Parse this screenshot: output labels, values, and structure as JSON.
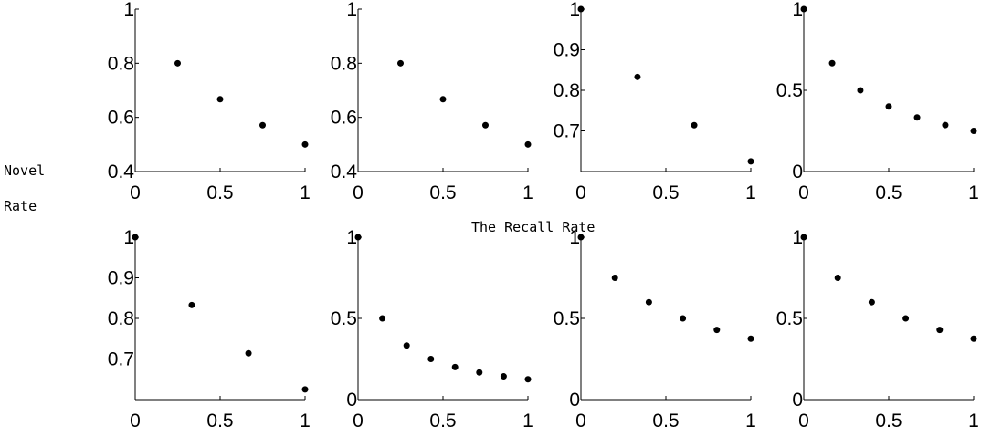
{
  "figure": {
    "ylabel_lines": [
      "Novel",
      "Rate"
    ],
    "xlabel": "The Recall Rate"
  },
  "chart_data": [
    {
      "type": "scatter",
      "x": [
        0.25,
        0.5,
        0.75,
        1.0
      ],
      "y": [
        0.8,
        0.667,
        0.571,
        0.5
      ],
      "xlim": [
        0,
        1
      ],
      "ylim": [
        0.4,
        1.0
      ],
      "xticks": [
        0,
        0.5,
        1
      ],
      "xtick_labels": [
        "0",
        "0.5",
        "1"
      ],
      "yticks": [
        0.4,
        0.6,
        0.8,
        1.0
      ],
      "ytick_labels": [
        "0.4",
        "0.6",
        "0.8",
        "1"
      ]
    },
    {
      "type": "scatter",
      "x": [
        0.25,
        0.5,
        0.75,
        1.0
      ],
      "y": [
        0.8,
        0.667,
        0.571,
        0.5
      ],
      "xlim": [
        0,
        1
      ],
      "ylim": [
        0.4,
        1.0
      ],
      "xticks": [
        0,
        0.5,
        1
      ],
      "xtick_labels": [
        "0",
        "0.5",
        "1"
      ],
      "yticks": [
        0.4,
        0.6,
        0.8,
        1.0
      ],
      "ytick_labels": [
        "0.4",
        "0.6",
        "0.8",
        "1"
      ]
    },
    {
      "type": "scatter",
      "x": [
        0,
        0.333,
        0.667,
        1.0
      ],
      "y": [
        1.0,
        0.833,
        0.714,
        0.625
      ],
      "xlim": [
        0,
        1
      ],
      "ylim": [
        0.6,
        1.0
      ],
      "xticks": [
        0,
        0.5,
        1
      ],
      "xtick_labels": [
        "0",
        "0.5",
        "1"
      ],
      "yticks": [
        0.7,
        0.8,
        0.9,
        1.0
      ],
      "ytick_labels": [
        "0.7",
        "0.8",
        "0.9",
        "1"
      ]
    },
    {
      "type": "scatter",
      "x": [
        0,
        0.167,
        0.333,
        0.5,
        0.667,
        0.833,
        1.0
      ],
      "y": [
        1.0,
        0.667,
        0.5,
        0.4,
        0.333,
        0.286,
        0.25
      ],
      "xlim": [
        0,
        1
      ],
      "ylim": [
        0,
        1.0
      ],
      "xticks": [
        0,
        0.5,
        1
      ],
      "xtick_labels": [
        "0",
        "0.5",
        "1"
      ],
      "yticks": [
        0,
        0.5,
        1.0
      ],
      "ytick_labels": [
        "0",
        "0.5",
        "1"
      ]
    },
    {
      "type": "scatter",
      "x": [
        0,
        0.333,
        0.667,
        1.0
      ],
      "y": [
        1.0,
        0.833,
        0.714,
        0.625
      ],
      "xlim": [
        0,
        1
      ],
      "ylim": [
        0.6,
        1.0
      ],
      "xticks": [
        0,
        0.5,
        1
      ],
      "xtick_labels": [
        "0",
        "0.5",
        "1"
      ],
      "yticks": [
        0.7,
        0.8,
        0.9,
        1.0
      ],
      "ytick_labels": [
        "0.7",
        "0.8",
        "0.9",
        "1"
      ]
    },
    {
      "type": "scatter",
      "x": [
        0,
        0.143,
        0.286,
        0.429,
        0.571,
        0.714,
        0.857,
        1.0
      ],
      "y": [
        1.0,
        0.5,
        0.333,
        0.25,
        0.2,
        0.167,
        0.143,
        0.125
      ],
      "xlim": [
        0,
        1
      ],
      "ylim": [
        0,
        1.0
      ],
      "xticks": [
        0,
        0.5,
        1
      ],
      "xtick_labels": [
        "0",
        "0.5",
        "1"
      ],
      "yticks": [
        0,
        0.5,
        1.0
      ],
      "ytick_labels": [
        "0",
        "0.5",
        "1"
      ]
    },
    {
      "type": "scatter",
      "x": [
        0,
        0.2,
        0.4,
        0.6,
        0.8,
        1.0
      ],
      "y": [
        1.0,
        0.75,
        0.6,
        0.5,
        0.429,
        0.375
      ],
      "xlim": [
        0,
        1
      ],
      "ylim": [
        0,
        1.0
      ],
      "xticks": [
        0,
        0.5,
        1
      ],
      "xtick_labels": [
        "0",
        "0.5",
        "1"
      ],
      "yticks": [
        0,
        0.5,
        1.0
      ],
      "ytick_labels": [
        "0",
        "0.5",
        "1"
      ]
    },
    {
      "type": "scatter",
      "x": [
        0,
        0.2,
        0.4,
        0.6,
        0.8,
        1.0
      ],
      "y": [
        1.0,
        0.75,
        0.6,
        0.5,
        0.429,
        0.375
      ],
      "xlim": [
        0,
        1
      ],
      "ylim": [
        0,
        1.0
      ],
      "xticks": [
        0,
        0.5,
        1
      ],
      "xtick_labels": [
        "0",
        "0.5",
        "1"
      ],
      "yticks": [
        0,
        0.5,
        1.0
      ],
      "ytick_labels": [
        "0",
        "0.5",
        "1"
      ]
    }
  ]
}
